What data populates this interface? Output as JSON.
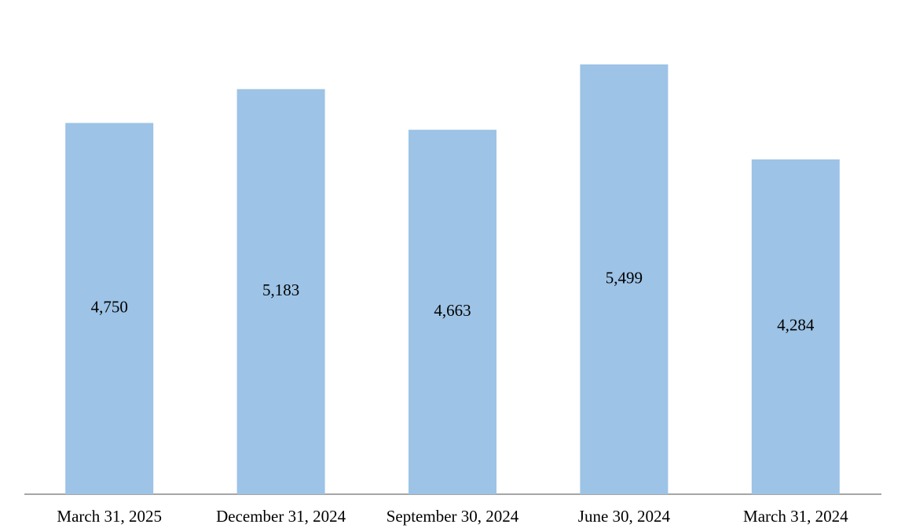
{
  "chart_data": {
    "type": "bar",
    "categories": [
      "March 31, 2025",
      "December 31, 2024",
      "September 30, 2024",
      "June 30, 2024",
      "March 31, 2024"
    ],
    "values": [
      4750,
      5183,
      4663,
      5499,
      4284
    ],
    "value_labels": [
      "4,750",
      "5,183",
      "4,663",
      "5,499",
      "4,284"
    ],
    "color": "#9dc3e6"
  }
}
